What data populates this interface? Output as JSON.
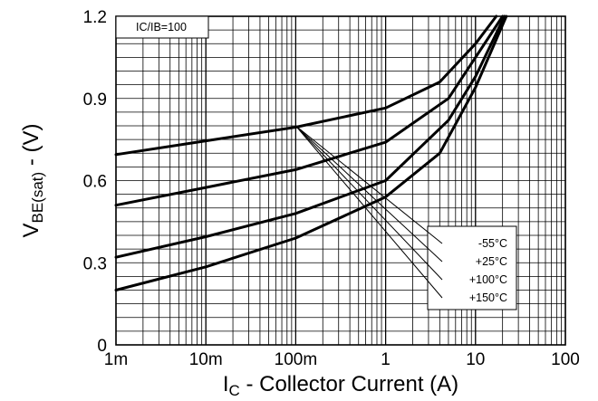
{
  "chart_data": {
    "type": "line",
    "x_scale": "log",
    "xlim": [
      0.001,
      100
    ],
    "ylim": [
      0,
      1.2
    ],
    "x_ticks": [
      {
        "value": 0.001,
        "label": "1m"
      },
      {
        "value": 0.01,
        "label": "10m"
      },
      {
        "value": 0.1,
        "label": "100m"
      },
      {
        "value": 1,
        "label": "1"
      },
      {
        "value": 10,
        "label": "10"
      },
      {
        "value": 100,
        "label": "100"
      }
    ],
    "y_ticks": [
      {
        "value": 0,
        "label": "0"
      },
      {
        "value": 0.3,
        "label": "0.3"
      },
      {
        "value": 0.6,
        "label": "0.6"
      },
      {
        "value": 0.9,
        "label": "0.9"
      },
      {
        "value": 1.2,
        "label": "1.2"
      }
    ],
    "xlabel_main": "I",
    "xlabel_sub": "C",
    "xlabel_rest": " - Collector Current (A)",
    "ylabel_main": "V",
    "ylabel_sub": "BE(sat)",
    "ylabel_rest": " - (V)",
    "annotation": "IC/IB=100",
    "grid": true,
    "legend_position": "bottom-right",
    "series": [
      {
        "name": "-55°C",
        "points": [
          [
            0.001,
            0.695
          ],
          [
            0.01,
            0.745
          ],
          [
            0.1,
            0.795
          ],
          [
            1,
            0.865
          ],
          [
            4,
            0.96
          ],
          [
            10,
            1.1
          ],
          [
            17,
            1.2
          ]
        ]
      },
      {
        "name": "+25°C",
        "points": [
          [
            0.001,
            0.51
          ],
          [
            0.01,
            0.575
          ],
          [
            0.1,
            0.64
          ],
          [
            1,
            0.74
          ],
          [
            5,
            0.9
          ],
          [
            10,
            1.05
          ],
          [
            20,
            1.2
          ]
        ]
      },
      {
        "name": "+100°C",
        "points": [
          [
            0.001,
            0.32
          ],
          [
            0.01,
            0.395
          ],
          [
            0.1,
            0.48
          ],
          [
            1,
            0.6
          ],
          [
            5,
            0.82
          ],
          [
            10,
            0.98
          ],
          [
            21,
            1.2
          ]
        ]
      },
      {
        "name": "+150°C",
        "points": [
          [
            0.001,
            0.2
          ],
          [
            0.01,
            0.285
          ],
          [
            0.1,
            0.39
          ],
          [
            1,
            0.54
          ],
          [
            4,
            0.7
          ],
          [
            10,
            0.94
          ],
          [
            22,
            1.2
          ]
        ]
      }
    ],
    "legend_pointer_origin": [
      0.1,
      0.8
    ]
  }
}
